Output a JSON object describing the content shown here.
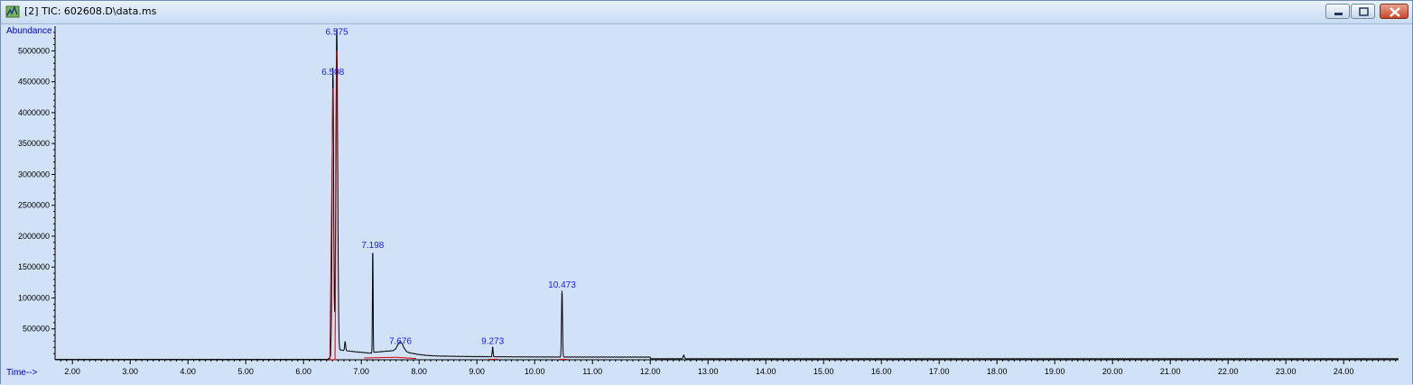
{
  "window": {
    "title": "[2] TIC: 602608.D\\data.ms",
    "icon": "chromatogram-app-icon",
    "buttons": [
      "minimize-icon",
      "restore-icon",
      "close-icon"
    ]
  },
  "colors": {
    "background": "#d1e2f8",
    "trace": "#000000",
    "integration": "#e00000",
    "peak_label": "#1a1aff",
    "axis_label": "#0000cc"
  },
  "chart_data": {
    "type": "line",
    "title": "",
    "ylabel": "Abundance",
    "xlabel": "Time-->",
    "xlim": [
      1.7,
      24.95
    ],
    "ylim": [
      0,
      5400000
    ],
    "x_ticks": [
      "2.00",
      "3.00",
      "4.00",
      "5.00",
      "6.00",
      "7.00",
      "8.00",
      "9.00",
      "10.00",
      "11.00",
      "12.00",
      "13.00",
      "14.00",
      "15.00",
      "16.00",
      "17.00",
      "18.00",
      "19.00",
      "20.00",
      "21.00",
      "22.00",
      "23.00",
      "24.00"
    ],
    "y_ticks": [
      "500000",
      "1000000",
      "1500000",
      "2000000",
      "2500000",
      "3000000",
      "3500000",
      "4000000",
      "4500000",
      "5000000"
    ],
    "grid": false,
    "peaks": [
      {
        "rt": 6.508,
        "label": "6.508",
        "height": 4550000
      },
      {
        "rt": 6.575,
        "label": "6.575",
        "height": 5200000
      },
      {
        "rt": 7.198,
        "label": "7.198",
        "height": 1720000
      },
      {
        "rt": 7.676,
        "label": "7.676",
        "height": 200000
      },
      {
        "rt": 9.273,
        "label": "9.273",
        "height": 170000
      },
      {
        "rt": 10.473,
        "label": "10.473",
        "height": 1080000
      }
    ]
  }
}
